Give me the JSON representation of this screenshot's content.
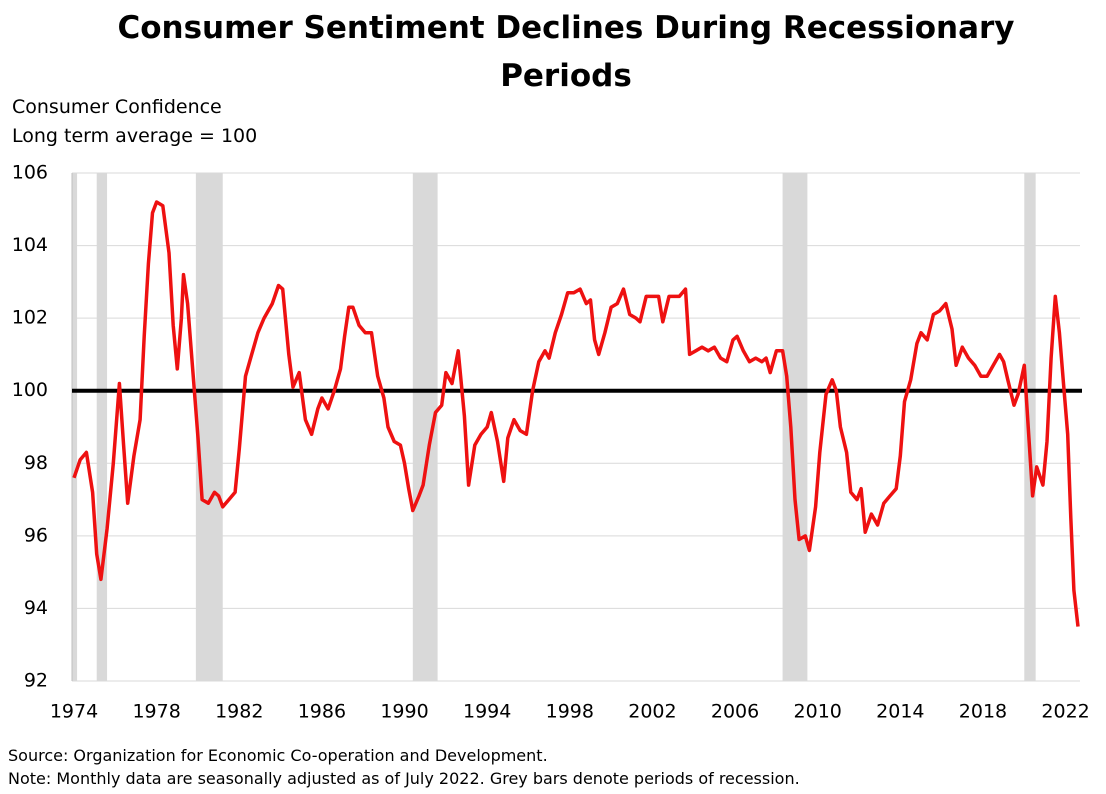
{
  "chart_data": {
    "type": "line",
    "title": "Consumer Sentiment Declines During Recessionary Periods",
    "ylabel": "Consumer Confidence",
    "subtitle": "Long term average = 100",
    "source": "Source: Organization for Economic Co-operation and Development.",
    "note": "Note: Monthly data are seasonally adjusted as of July 2022. Grey bars denote periods of recession.",
    "xlim": [
      1974,
      2022.6
    ],
    "xticks": [
      1974,
      1978,
      1982,
      1986,
      1990,
      1994,
      1998,
      2002,
      2006,
      2010,
      2014,
      2018,
      2022
    ],
    "ylim": [
      92,
      106
    ],
    "yticks": [
      92,
      94,
      96,
      98,
      100,
      102,
      104,
      106
    ],
    "grid": true,
    "reference_line": 100,
    "reference_color": "#000000",
    "recession_color": "#d9d9d9",
    "recessions": [
      [
        1973.9,
        1974.15
      ],
      [
        1975.1,
        1975.6
      ],
      [
        1979.9,
        1981.2
      ],
      [
        1990.4,
        1991.6
      ],
      [
        2008.3,
        2009.5
      ],
      [
        2020.0,
        2020.55
      ]
    ],
    "x": [
      1974.0,
      1974.3,
      1974.6,
      1974.9,
      1975.1,
      1975.3,
      1975.6,
      1975.9,
      1976.2,
      1976.4,
      1976.6,
      1976.9,
      1977.2,
      1977.4,
      1977.6,
      1977.8,
      1978.0,
      1978.3,
      1978.6,
      1978.8,
      1979.0,
      1979.2,
      1979.3,
      1979.5,
      1979.8,
      1980.0,
      1980.2,
      1980.5,
      1980.8,
      1981.0,
      1981.2,
      1981.5,
      1981.8,
      1982.0,
      1982.3,
      1982.6,
      1982.9,
      1983.2,
      1983.6,
      1983.9,
      1984.1,
      1984.4,
      1984.6,
      1984.9,
      1985.2,
      1985.5,
      1985.8,
      1986.0,
      1986.3,
      1986.6,
      1986.9,
      1987.1,
      1987.3,
      1987.5,
      1987.8,
      1988.1,
      1988.4,
      1988.7,
      1989.0,
      1989.2,
      1989.5,
      1989.8,
      1990.0,
      1990.2,
      1990.4,
      1990.7,
      1990.9,
      1991.2,
      1991.5,
      1991.8,
      1992.0,
      1992.3,
      1992.6,
      1992.9,
      1993.1,
      1993.4,
      1993.7,
      1994.0,
      1994.2,
      1994.5,
      1994.8,
      1995.0,
      1995.3,
      1995.6,
      1995.9,
      1996.2,
      1996.5,
      1996.8,
      1997.0,
      1997.3,
      1997.6,
      1997.9,
      1998.2,
      1998.5,
      1998.8,
      1999.0,
      1999.2,
      1999.4,
      1999.7,
      2000.0,
      2000.3,
      2000.6,
      2000.9,
      2001.2,
      2001.4,
      2001.7,
      2002.0,
      2002.3,
      2002.5,
      2002.8,
      2003.1,
      2003.3,
      2003.6,
      2003.8,
      2004.1,
      2004.4,
      2004.7,
      2005.0,
      2005.3,
      2005.6,
      2005.9,
      2006.1,
      2006.4,
      2006.7,
      2007.0,
      2007.3,
      2007.5,
      2007.7,
      2008.0,
      2008.3,
      2008.5,
      2008.7,
      2008.9,
      2009.1,
      2009.4,
      2009.6,
      2009.9,
      2010.1,
      2010.4,
      2010.7,
      2010.9,
      2011.1,
      2011.4,
      2011.6,
      2011.9,
      2012.1,
      2012.3,
      2012.6,
      2012.9,
      2013.2,
      2013.5,
      2013.8,
      2014.0,
      2014.2,
      2014.5,
      2014.8,
      2015.0,
      2015.3,
      2015.6,
      2015.9,
      2016.2,
      2016.5,
      2016.7,
      2017.0,
      2017.3,
      2017.6,
      2017.9,
      2018.2,
      2018.5,
      2018.8,
      2019.0,
      2019.2,
      2019.5,
      2019.7,
      2020.0,
      2020.4,
      2020.6,
      2020.9,
      2021.1,
      2021.3,
      2021.5,
      2021.7,
      2021.9,
      2022.1,
      2022.25,
      2022.4,
      2022.6
    ],
    "series": [
      {
        "name": "Consumer Confidence",
        "color": "#ee1111",
        "values": [
          97.6,
          98.1,
          98.3,
          97.2,
          95.5,
          94.8,
          96.2,
          98.0,
          100.2,
          98.5,
          96.9,
          98.2,
          99.2,
          101.5,
          103.5,
          104.9,
          105.2,
          105.1,
          103.8,
          101.8,
          100.6,
          102.0,
          103.2,
          102.4,
          100.2,
          98.7,
          97.0,
          96.9,
          97.2,
          97.1,
          96.8,
          97.0,
          97.2,
          98.4,
          100.4,
          101.0,
          101.6,
          102.0,
          102.4,
          102.9,
          102.8,
          101.0,
          100.1,
          100.5,
          99.2,
          98.8,
          99.5,
          99.8,
          99.5,
          100.0,
          100.6,
          101.5,
          102.3,
          102.3,
          101.8,
          101.6,
          101.6,
          100.4,
          99.8,
          99.0,
          98.6,
          98.5,
          98.0,
          97.3,
          96.7,
          97.1,
          97.4,
          98.5,
          99.4,
          99.6,
          100.5,
          100.2,
          101.1,
          99.3,
          97.4,
          98.5,
          98.8,
          99.0,
          99.4,
          98.6,
          97.5,
          98.7,
          99.2,
          98.9,
          98.8,
          100.0,
          100.8,
          101.1,
          100.9,
          101.6,
          102.1,
          102.7,
          102.7,
          102.8,
          102.4,
          102.5,
          101.4,
          101.0,
          101.6,
          102.3,
          102.4,
          102.8,
          102.1,
          102.0,
          101.9,
          102.6,
          102.6,
          102.6,
          101.9,
          102.6,
          102.6,
          102.6,
          102.8,
          101.0,
          101.1,
          101.2,
          101.1,
          101.2,
          100.9,
          100.8,
          101.4,
          101.5,
          101.1,
          100.8,
          100.9,
          100.8,
          100.9,
          100.5,
          101.1,
          101.1,
          100.4,
          99.0,
          97.0,
          95.9,
          96.0,
          95.6,
          96.8,
          98.3,
          99.9,
          100.3,
          100.0,
          99.0,
          98.3,
          97.2,
          97.0,
          97.3,
          96.1,
          96.6,
          96.3,
          96.9,
          97.1,
          97.3,
          98.2,
          99.7,
          100.3,
          101.3,
          101.6,
          101.4,
          102.1,
          102.2,
          102.4,
          101.7,
          100.7,
          101.2,
          100.9,
          100.7,
          100.4,
          100.4,
          100.7,
          101.0,
          100.8,
          100.3,
          99.6,
          99.9,
          100.7,
          97.1,
          97.9,
          97.4,
          98.6,
          100.9,
          102.6,
          101.6,
          100.2,
          98.8,
          96.5,
          94.5,
          93.5
        ]
      }
    ]
  }
}
